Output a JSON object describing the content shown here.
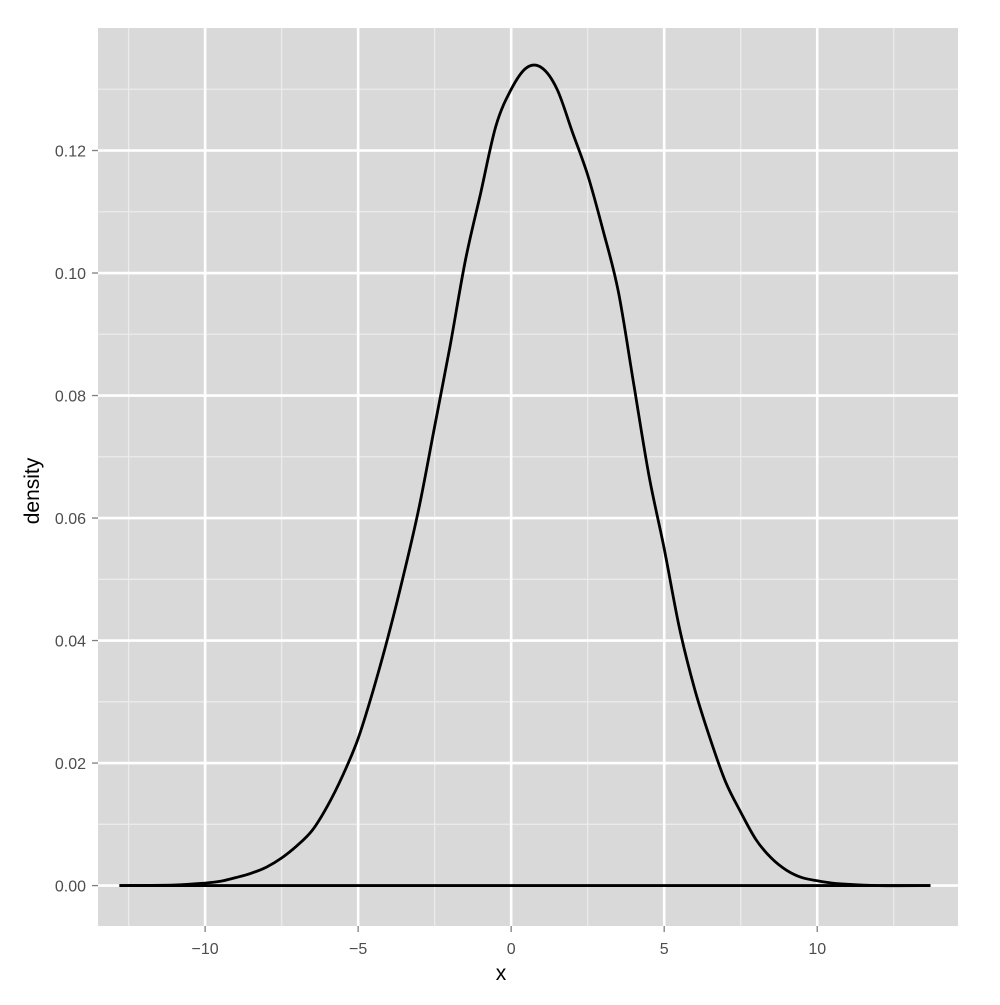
{
  "chart_data": {
    "type": "line",
    "title": "",
    "xlabel": "x",
    "ylabel": "density",
    "xlim": [
      -13.5,
      14.6
    ],
    "ylim": [
      -0.0066,
      0.14
    ],
    "x_ticks": [
      -10,
      -5,
      0,
      5,
      10
    ],
    "x_tick_labels": [
      "−10",
      "−5",
      "0",
      "5",
      "10"
    ],
    "y_ticks": [
      0.0,
      0.02,
      0.04,
      0.06,
      0.08,
      0.1,
      0.12
    ],
    "y_tick_labels": [
      "0.00",
      "0.02",
      "0.04",
      "0.06",
      "0.08",
      "0.10",
      "0.12"
    ],
    "x_minor_ticks": [
      -12.5,
      -7.5,
      -2.5,
      2.5,
      7.5,
      12.5
    ],
    "y_minor_ticks": [
      0.01,
      0.03,
      0.05,
      0.07,
      0.09,
      0.11,
      0.13
    ],
    "grid": true,
    "colors": {
      "panel_background": "#d9d9d9",
      "grid_major": "#ffffff",
      "grid_minor": "#ebebeb",
      "line": "#000000",
      "tick_label": "#4d4d4d"
    },
    "series": [
      {
        "x": [
          -12.8,
          -11.0,
          -10.0,
          -9.5,
          -9.0,
          -8.5,
          -8.0,
          -7.5,
          -7.0,
          -6.5,
          -6.0,
          -5.5,
          -5.0,
          -4.5,
          -4.0,
          -3.5,
          -3.0,
          -2.5,
          -2.0,
          -1.5,
          -1.0,
          -0.5,
          0.0,
          0.5,
          1.0,
          1.5,
          2.0,
          2.5,
          3.0,
          3.5,
          4.0,
          4.5,
          5.0,
          5.5,
          6.0,
          6.5,
          7.0,
          7.5,
          8.0,
          8.5,
          9.0,
          9.5,
          10.0,
          10.5,
          11.0,
          12.0,
          13.7
        ],
        "y": [
          0.0,
          0.0001,
          0.0004,
          0.0007,
          0.0013,
          0.002,
          0.003,
          0.0045,
          0.0065,
          0.009,
          0.013,
          0.018,
          0.024,
          0.032,
          0.041,
          0.051,
          0.062,
          0.075,
          0.088,
          0.102,
          0.113,
          0.124,
          0.13,
          0.1335,
          0.1335,
          0.13,
          0.123,
          0.116,
          0.107,
          0.097,
          0.082,
          0.067,
          0.055,
          0.042,
          0.032,
          0.024,
          0.017,
          0.012,
          0.0075,
          0.0045,
          0.0025,
          0.0013,
          0.0008,
          0.0004,
          0.0002,
          0.0,
          0.0
        ]
      }
    ],
    "baseline": {
      "x_from": -12.8,
      "x_to": 13.7,
      "y": 0.0
    }
  }
}
